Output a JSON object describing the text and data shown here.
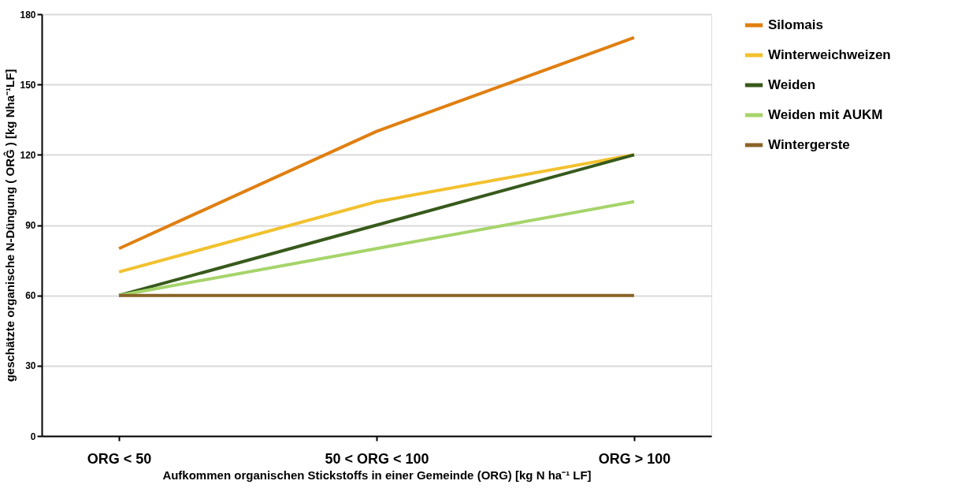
{
  "chart_data": {
    "type": "line",
    "xlabel": "Aufkommen organischen  Stickstoffs in einer Gemeinde (ORG) [kg N ha⁻¹ LF]",
    "ylabel": "geschätzte organische N-Düngung ( ORĜ ) [kg Nha⁻¹LF]",
    "categories": [
      "ORG < 50",
      "50 < ORG < 100",
      "ORG > 100"
    ],
    "series": [
      {
        "name": "Silomais",
        "color": "#e07f10",
        "values": [
          80,
          130,
          170
        ]
      },
      {
        "name": "Winterweichweizen",
        "color": "#f2c12e",
        "values": [
          70,
          100,
          120
        ]
      },
      {
        "name": "Weiden",
        "color": "#375a1c",
        "values": [
          60,
          90,
          120
        ]
      },
      {
        "name": "Weiden mit AUKM",
        "color": "#a6d46a",
        "values": [
          60,
          80,
          100
        ]
      },
      {
        "name": "Wintergerste",
        "color": "#8a6428",
        "values": [
          60,
          60,
          60
        ]
      }
    ],
    "ylim": [
      0,
      180
    ],
    "yticks": [
      0,
      30,
      60,
      90,
      120,
      150,
      180
    ],
    "grid": "y",
    "legend": "right",
    "marker": "none",
    "line_style": "solid"
  }
}
